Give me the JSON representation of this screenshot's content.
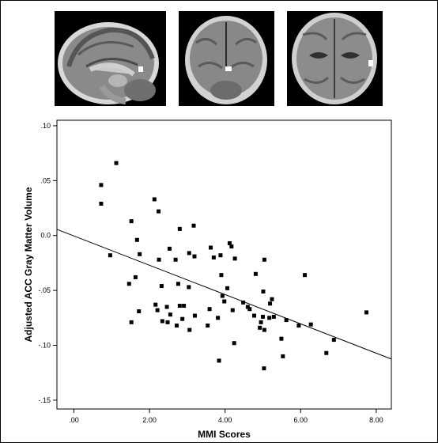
{
  "chart_data": {
    "type": "scatter",
    "xlabel": "MMI Scores",
    "ylabel": "Adjusted ACC Gray Matter Volume",
    "xlim": [
      -0.45,
      8.4
    ],
    "ylim": [
      -0.158,
      0.105
    ],
    "x_ticks": [
      0,
      2,
      4,
      6,
      8
    ],
    "x_tick_labels": [
      ".00",
      "2.00",
      "4.00",
      "6.00",
      "8.00"
    ],
    "y_ticks": [
      0.1,
      0.05,
      0.0,
      -0.05,
      -0.1,
      -0.15
    ],
    "y_tick_labels": [
      ".10",
      ".05",
      "0.0",
      "-.05",
      "-.10",
      "-.15"
    ],
    "fit_line": {
      "x": [
        -0.45,
        8.4
      ],
      "y": [
        0.0056,
        -0.1125
      ]
    },
    "points": [
      {
        "x": 0.72,
        "y": 0.046
      },
      {
        "x": 0.72,
        "y": 0.029
      },
      {
        "x": 1.12,
        "y": 0.066
      },
      {
        "x": 0.96,
        "y": -0.018
      },
      {
        "x": 1.52,
        "y": 0.013
      },
      {
        "x": 1.67,
        "y": -0.004
      },
      {
        "x": 1.74,
        "y": -0.017
      },
      {
        "x": 1.46,
        "y": -0.044
      },
      {
        "x": 1.63,
        "y": -0.038
      },
      {
        "x": 1.72,
        "y": -0.069
      },
      {
        "x": 1.52,
        "y": -0.079
      },
      {
        "x": 2.13,
        "y": 0.033
      },
      {
        "x": 2.24,
        "y": 0.022
      },
      {
        "x": 2.25,
        "y": -0.022
      },
      {
        "x": 2.32,
        "y": -0.046
      },
      {
        "x": 2.16,
        "y": -0.063
      },
      {
        "x": 2.21,
        "y": -0.068
      },
      {
        "x": 2.34,
        "y": -0.078
      },
      {
        "x": 2.46,
        "y": -0.065
      },
      {
        "x": 2.53,
        "y": -0.012
      },
      {
        "x": 2.55,
        "y": -0.072
      },
      {
        "x": 2.48,
        "y": -0.079
      },
      {
        "x": 2.69,
        "y": -0.022
      },
      {
        "x": 2.8,
        "y": 0.006
      },
      {
        "x": 2.76,
        "y": -0.044
      },
      {
        "x": 2.8,
        "y": -0.064
      },
      {
        "x": 2.72,
        "y": -0.082
      },
      {
        "x": 2.91,
        "y": -0.064
      },
      {
        "x": 2.87,
        "y": -0.076
      },
      {
        "x": 3.17,
        "y": 0.009
      },
      {
        "x": 3.05,
        "y": -0.016
      },
      {
        "x": 3.19,
        "y": -0.019
      },
      {
        "x": 3.04,
        "y": -0.047
      },
      {
        "x": 3.06,
        "y": -0.086
      },
      {
        "x": 3.2,
        "y": -0.073
      },
      {
        "x": 3.59,
        "y": -0.067
      },
      {
        "x": 3.54,
        "y": -0.082
      },
      {
        "x": 3.62,
        "y": -0.011
      },
      {
        "x": 3.7,
        "y": -0.02
      },
      {
        "x": 3.88,
        "y": -0.018
      },
      {
        "x": 3.9,
        "y": -0.036
      },
      {
        "x": 3.81,
        "y": -0.075
      },
      {
        "x": 3.93,
        "y": -0.055
      },
      {
        "x": 3.98,
        "y": -0.06
      },
      {
        "x": 3.84,
        "y": -0.114
      },
      {
        "x": 4.12,
        "y": -0.007
      },
      {
        "x": 4.17,
        "y": -0.01
      },
      {
        "x": 4.26,
        "y": -0.021
      },
      {
        "x": 4.06,
        "y": -0.048
      },
      {
        "x": 4.2,
        "y": -0.068
      },
      {
        "x": 4.24,
        "y": -0.098
      },
      {
        "x": 4.6,
        "y": -0.065
      },
      {
        "x": 4.48,
        "y": -0.061
      },
      {
        "x": 4.65,
        "y": -0.067
      },
      {
        "x": 4.77,
        "y": -0.073
      },
      {
        "x": 4.81,
        "y": -0.035
      },
      {
        "x": 4.92,
        "y": -0.084
      },
      {
        "x": 4.95,
        "y": -0.079
      },
      {
        "x": 5.04,
        "y": -0.022
      },
      {
        "x": 5.01,
        "y": -0.051
      },
      {
        "x": 5.0,
        "y": -0.074
      },
      {
        "x": 5.19,
        "y": -0.062
      },
      {
        "x": 5.17,
        "y": -0.075
      },
      {
        "x": 5.24,
        "y": -0.058
      },
      {
        "x": 5.29,
        "y": -0.074
      },
      {
        "x": 5.04,
        "y": -0.086
      },
      {
        "x": 5.03,
        "y": -0.121
      },
      {
        "x": 5.49,
        "y": -0.094
      },
      {
        "x": 5.53,
        "y": -0.11
      },
      {
        "x": 5.62,
        "y": -0.077
      },
      {
        "x": 5.95,
        "y": -0.082
      },
      {
        "x": 6.11,
        "y": -0.036
      },
      {
        "x": 6.27,
        "y": -0.081
      },
      {
        "x": 6.68,
        "y": -0.107
      },
      {
        "x": 6.88,
        "y": -0.095
      },
      {
        "x": 7.74,
        "y": -0.07
      }
    ]
  }
}
